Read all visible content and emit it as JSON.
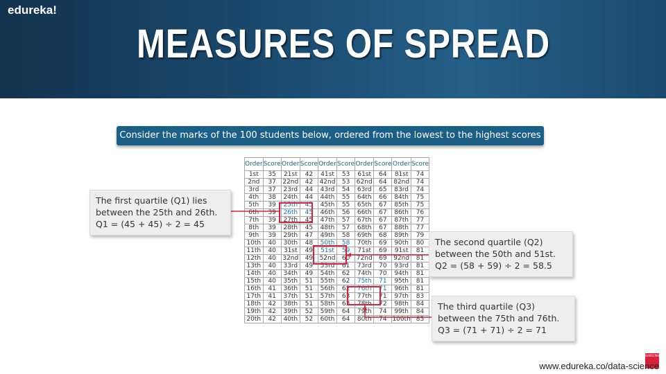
{
  "header": {
    "logo": "edureka!",
    "title": "MEASURES OF SPREAD"
  },
  "banner": "Consider the marks of the 100 students below, ordered from the lowest to the highest scores",
  "table": {
    "headers": [
      "Order",
      "Score",
      "Order",
      "Score",
      "Order",
      "Score",
      "Order",
      "Score",
      "Order",
      "Score"
    ],
    "rows": [
      [
        "1st",
        "35",
        "21st",
        "42",
        "41st",
        "53",
        "61st",
        "64",
        "81st",
        "74"
      ],
      [
        "2nd",
        "37",
        "22nd",
        "42",
        "42nd",
        "53",
        "62nd",
        "64",
        "82nd",
        "74"
      ],
      [
        "3rd",
        "37",
        "23rd",
        "44",
        "43rd",
        "54",
        "63rd",
        "65",
        "83rd",
        "74"
      ],
      [
        "4th",
        "38",
        "24th",
        "44",
        "44th",
        "55",
        "64th",
        "66",
        "84th",
        "75"
      ],
      [
        "5th",
        "39",
        "25th",
        "45",
        "45th",
        "55",
        "65th",
        "67",
        "85th",
        "75"
      ],
      [
        "6th",
        "39",
        "26th",
        "45",
        "46th",
        "56",
        "66th",
        "67",
        "86th",
        "76"
      ],
      [
        "7th",
        "39",
        "27th",
        "45",
        "47th",
        "57",
        "67th",
        "67",
        "87th",
        "77"
      ],
      [
        "8th",
        "39",
        "28th",
        "45",
        "48th",
        "57",
        "68th",
        "67",
        "88th",
        "77"
      ],
      [
        "9th",
        "39",
        "29th",
        "47",
        "49th",
        "58",
        "69th",
        "68",
        "89th",
        "79"
      ],
      [
        "10th",
        "40",
        "30th",
        "48",
        "50th",
        "58",
        "70th",
        "69",
        "90th",
        "80"
      ],
      [
        "11th",
        "40",
        "31st",
        "49",
        "51st",
        "59",
        "71st",
        "69",
        "91st",
        "81"
      ],
      [
        "12th",
        "40",
        "32nd",
        "49",
        "52nd",
        "60",
        "72nd",
        "69",
        "92nd",
        "81"
      ],
      [
        "13th",
        "40",
        "33rd",
        "49",
        "53rd",
        "61",
        "73rd",
        "70",
        "93rd",
        "81"
      ],
      [
        "14th",
        "40",
        "34th",
        "49",
        "54th",
        "62",
        "74th",
        "70",
        "94th",
        "81"
      ],
      [
        "15th",
        "40",
        "35th",
        "51",
        "55th",
        "62",
        "75th",
        "71",
        "95th",
        "81"
      ],
      [
        "16th",
        "41",
        "36th",
        "51",
        "56th",
        "62",
        "76th",
        "71",
        "96th",
        "81"
      ],
      [
        "17th",
        "41",
        "37th",
        "51",
        "57th",
        "63",
        "77th",
        "71",
        "97th",
        "83"
      ],
      [
        "18th",
        "42",
        "38th",
        "51",
        "58th",
        "63",
        "78th",
        "72",
        "98th",
        "84"
      ],
      [
        "19th",
        "42",
        "39th",
        "52",
        "59th",
        "64",
        "79th",
        "74",
        "99th",
        "84"
      ],
      [
        "20th",
        "42",
        "40th",
        "52",
        "60th",
        "64",
        "80th",
        "74",
        "100th",
        "85"
      ]
    ]
  },
  "callouts": {
    "q1": {
      "line1": "The first quartile (Q1) lies",
      "line2": "between the 25th and 26th.",
      "line3": "Q1 = (45 + 45) ÷ 2 = 45"
    },
    "q2": {
      "line1": "The second quartile (Q2)",
      "line2": "between the 50th and 51st.",
      "line3": "Q2 = (58 + 59) ÷ 2 = 58.5"
    },
    "q3": {
      "line1": "The third quartile (Q3)",
      "line2": "between the 75th and 76th.",
      "line3": "Q3 = (71 + 71) ÷ 2 = 71"
    }
  },
  "subscribe_badge": "SUBSCRIBE",
  "footer_url": "www.edureka.co/data-science",
  "colors": {
    "header": "#1c4d72",
    "banner": "#1c5f86",
    "highlight": "#d6223a",
    "highlight_text": "#1a6fb5"
  }
}
